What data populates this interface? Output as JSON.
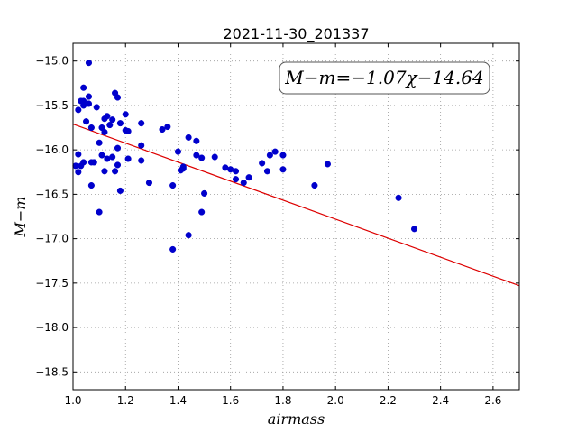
{
  "chart_data": {
    "type": "scatter",
    "title": "2021-11-30_201337",
    "xlabel": "airmass",
    "ylabel": "M−m",
    "xlim": [
      1.0,
      2.7
    ],
    "ylim": [
      -18.7,
      -14.8
    ],
    "y_inverted": true,
    "grid": true,
    "xticks": [
      1.0,
      1.2,
      1.4,
      1.6,
      1.8,
      2.0,
      2.2,
      2.4,
      2.6
    ],
    "xtick_labels": [
      "1.0",
      "1.2",
      "1.4",
      "1.6",
      "1.8",
      "2.0",
      "2.2",
      "2.4",
      "2.6"
    ],
    "yticks": [
      -15.0,
      -15.5,
      -16.0,
      -16.5,
      -17.0,
      -17.5,
      -18.0,
      -18.5
    ],
    "ytick_labels": [
      "−15.0",
      "−15.5",
      "−16.0",
      "−16.5",
      "−17.0",
      "−17.5",
      "−18.0",
      "−18.5"
    ],
    "annotation": "M−m=−1.07χ−14.64",
    "points_color": "#0000cc",
    "fit_color": "#dd0000",
    "fit": {
      "slope": -1.07,
      "intercept": -14.64,
      "x_start": 1.0,
      "x_end": 2.7
    },
    "points": [
      [
        1.02,
        -16.05
      ],
      [
        1.03,
        -15.45
      ],
      [
        1.02,
        -15.55
      ],
      [
        1.04,
        -15.3
      ],
      [
        1.04,
        -15.5
      ],
      [
        1.04,
        -15.45
      ],
      [
        1.06,
        -15.02
      ],
      [
        1.06,
        -15.4
      ],
      [
        1.05,
        -15.68
      ],
      [
        1.06,
        -15.48
      ],
      [
        1.07,
        -15.75
      ],
      [
        1.01,
        -16.18
      ],
      [
        1.02,
        -16.25
      ],
      [
        1.03,
        -16.18
      ],
      [
        1.04,
        -16.14
      ],
      [
        1.07,
        -16.14
      ],
      [
        1.08,
        -16.14
      ],
      [
        1.07,
        -16.4
      ],
      [
        1.09,
        -15.52
      ],
      [
        1.1,
        -16.7
      ],
      [
        1.1,
        -15.92
      ],
      [
        1.11,
        -15.75
      ],
      [
        1.11,
        -16.06
      ],
      [
        1.12,
        -15.8
      ],
      [
        1.12,
        -15.65
      ],
      [
        1.13,
        -15.62
      ],
      [
        1.14,
        -15.72
      ],
      [
        1.15,
        -15.66
      ],
      [
        1.13,
        -16.1
      ],
      [
        1.12,
        -16.24
      ],
      [
        1.15,
        -16.08
      ],
      [
        1.16,
        -15.36
      ],
      [
        1.17,
        -15.41
      ],
      [
        1.17,
        -16.17
      ],
      [
        1.16,
        -16.24
      ],
      [
        1.18,
        -15.7
      ],
      [
        1.17,
        -15.98
      ],
      [
        1.18,
        -16.46
      ],
      [
        1.2,
        -15.6
      ],
      [
        1.2,
        -15.78
      ],
      [
        1.21,
        -15.79
      ],
      [
        1.21,
        -16.1
      ],
      [
        1.26,
        -15.7
      ],
      [
        1.26,
        -15.95
      ],
      [
        1.26,
        -16.12
      ],
      [
        1.29,
        -16.37
      ],
      [
        1.34,
        -15.77
      ],
      [
        1.36,
        -15.74
      ],
      [
        1.38,
        -16.4
      ],
      [
        1.38,
        -17.12
      ],
      [
        1.4,
        -16.02
      ],
      [
        1.41,
        -16.23
      ],
      [
        1.42,
        -16.21
      ],
      [
        1.42,
        -16.19
      ],
      [
        1.44,
        -15.86
      ],
      [
        1.44,
        -16.96
      ],
      [
        1.47,
        -16.06
      ],
      [
        1.47,
        -15.9
      ],
      [
        1.49,
        -16.09
      ],
      [
        1.49,
        -16.7
      ],
      [
        1.5,
        -16.49
      ],
      [
        1.54,
        -16.08
      ],
      [
        1.58,
        -16.2
      ],
      [
        1.6,
        -16.22
      ],
      [
        1.62,
        -16.24
      ],
      [
        1.62,
        -16.33
      ],
      [
        1.65,
        -16.37
      ],
      [
        1.67,
        -16.31
      ],
      [
        1.72,
        -16.15
      ],
      [
        1.74,
        -16.24
      ],
      [
        1.75,
        -16.06
      ],
      [
        1.77,
        -16.02
      ],
      [
        1.8,
        -16.06
      ],
      [
        1.8,
        -16.22
      ],
      [
        1.92,
        -16.4
      ],
      [
        1.97,
        -16.16
      ],
      [
        2.24,
        -16.54
      ],
      [
        2.3,
        -16.89
      ]
    ]
  }
}
